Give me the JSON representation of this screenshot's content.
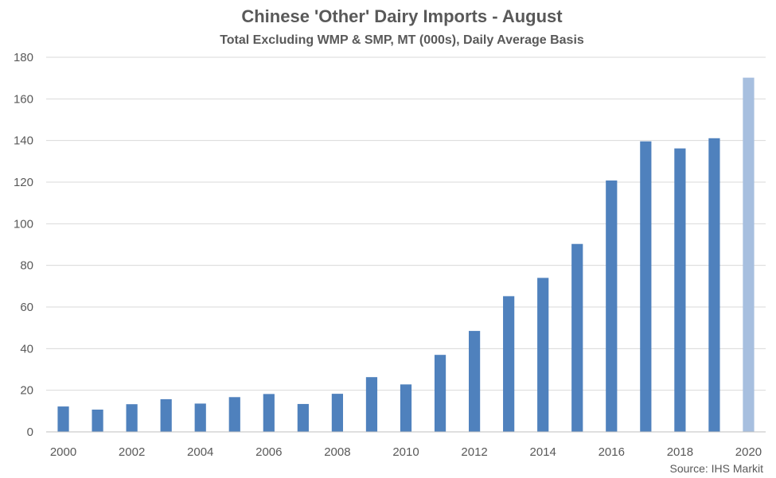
{
  "chart_data": {
    "type": "bar",
    "title": "Chinese 'Other' Dairy Imports - August",
    "subtitle": "Total Excluding WMP & SMP, MT (000s), Daily Average Basis",
    "source": "Source: IHS Markit",
    "xlabel": "",
    "ylabel": "",
    "ylim": [
      0,
      180
    ],
    "yticks": [
      0,
      20,
      40,
      60,
      80,
      100,
      120,
      140,
      160,
      180
    ],
    "grid": true,
    "legend": "none",
    "categories": [
      "2000",
      "2001",
      "2002",
      "2003",
      "2004",
      "2005",
      "2006",
      "2007",
      "2008",
      "2009",
      "2010",
      "2011",
      "2012",
      "2013",
      "2014",
      "2015",
      "2016",
      "2017",
      "2018",
      "2019",
      "2020"
    ],
    "xtick_labels": [
      "2000",
      "2002",
      "2004",
      "2006",
      "2008",
      "2010",
      "2012",
      "2014",
      "2016",
      "2018",
      "2020"
    ],
    "values": [
      12.2,
      10.7,
      13.3,
      15.7,
      13.6,
      16.7,
      18.2,
      13.4,
      18.3,
      26.3,
      22.8,
      37.0,
      48.5,
      65.2,
      74.0,
      90.3,
      120.8,
      139.6,
      136.2,
      141.1,
      170.2
    ],
    "colors": {
      "bar": "#4f81bd",
      "highlight_bar": "#a7bfdf",
      "grid": "#d9d9d9",
      "axis": "#bfbfbf",
      "text": "#595959"
    },
    "highlight_category": "2020"
  }
}
